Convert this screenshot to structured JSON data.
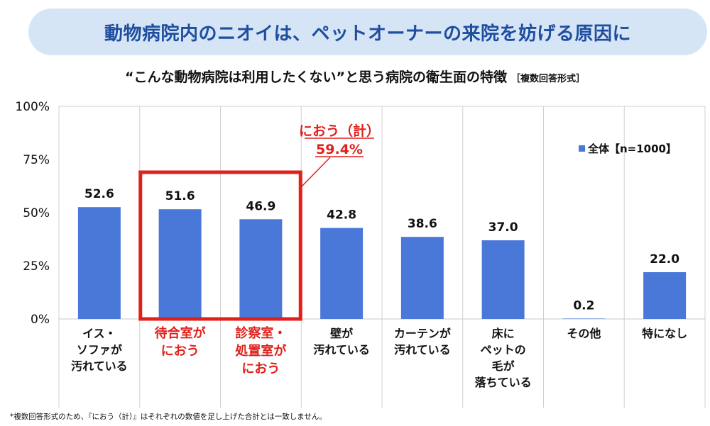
{
  "banner": {
    "title": "動物病院内のニオイは、ペットオーナーの来院を妨げる原因に"
  },
  "subtitle": {
    "text": "“こんな動物病院は利用したくない”と思う病院の衛生面の特徴",
    "tag": "［複数回答形式］"
  },
  "footnote": "*複数回答形式のため、『におう（計）』はそれぞれの数値を足し上げた合計とは一致しません。",
  "chart_data": {
    "type": "bar",
    "title": "“こんな動物病院は利用したくない”と思う病院の衛生面の特徴",
    "ylim": [
      0,
      100
    ],
    "yticks": [
      "0%",
      "25%",
      "50%",
      "75%",
      "100%"
    ],
    "ytick_values": [
      0,
      25,
      50,
      75,
      100
    ],
    "legend": {
      "label": "全体【n=1000】",
      "position": "top-right"
    },
    "bar_color": "#4a78d8",
    "categories": [
      {
        "lines": [
          "イス・",
          "ソファが",
          "汚れている"
        ],
        "highlight": false
      },
      {
        "lines": [
          "待合室が",
          "におう"
        ],
        "highlight": true
      },
      {
        "lines": [
          "診察室・",
          "処置室が",
          "におう"
        ],
        "highlight": true
      },
      {
        "lines": [
          "壁が",
          "汚れている"
        ],
        "highlight": false
      },
      {
        "lines": [
          "カーテンが",
          "汚れている"
        ],
        "highlight": false
      },
      {
        "lines": [
          "床に",
          "ペットの",
          "毛が",
          "落ちている"
        ],
        "highlight": false
      },
      {
        "lines": [
          "その他"
        ],
        "highlight": false
      },
      {
        "lines": [
          "特になし"
        ],
        "highlight": false
      }
    ],
    "values": [
      52.6,
      51.6,
      46.9,
      42.8,
      38.6,
      37.0,
      0.2,
      22.0
    ],
    "value_labels": [
      "52.6",
      "51.6",
      "46.9",
      "42.8",
      "38.6",
      "37.0",
      "0.2",
      "22.0"
    ],
    "callout": {
      "label": "におう（計）",
      "value": "59.4%",
      "color": "#e0201b",
      "covers": [
        1,
        2
      ]
    }
  }
}
